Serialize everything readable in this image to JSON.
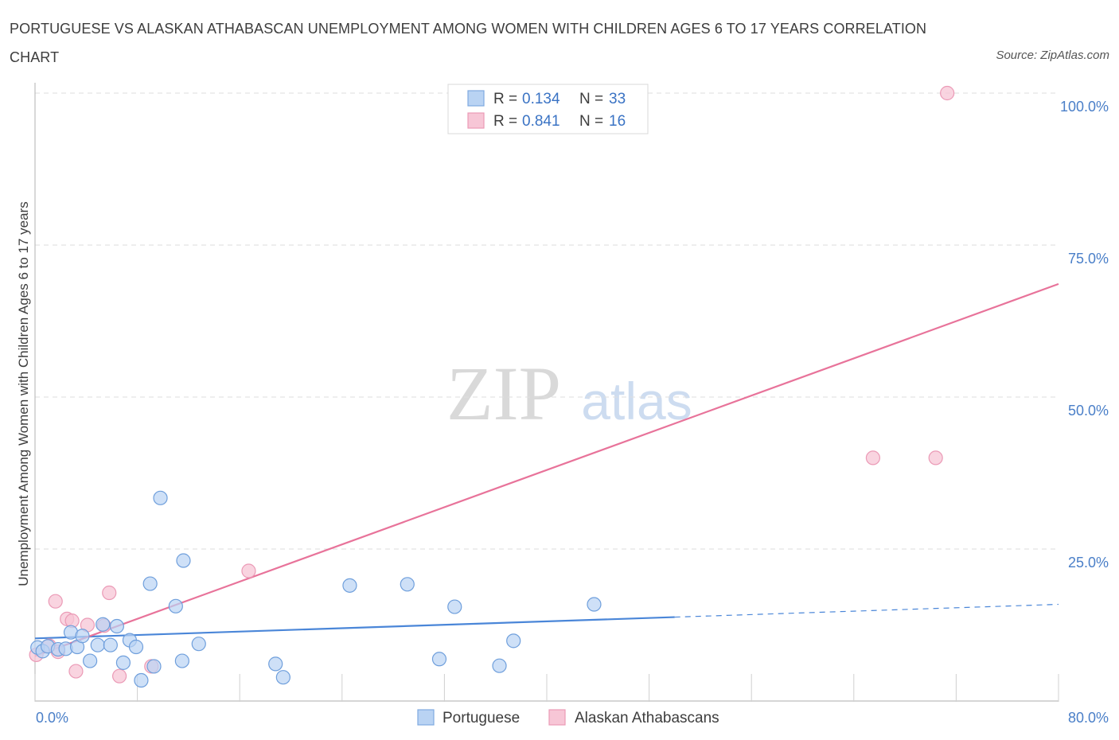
{
  "header": {
    "title": "PORTUGUESE VS ALASKAN ATHABASCAN UNEMPLOYMENT AMONG WOMEN WITH CHILDREN AGES 6 TO 17 YEARS CORRELATION CHART",
    "source": "Source: ZipAtlas.com"
  },
  "watermark": {
    "zip": "ZIP",
    "atlas": "atlas"
  },
  "legend": {
    "rows": [
      {
        "r_label": "R = ",
        "r_value": "0.134",
        "n_label": "N = ",
        "n_value": "33"
      },
      {
        "r_label": "R = ",
        "r_value": "0.841",
        "n_label": "N = ",
        "n_value": "16"
      }
    ]
  },
  "chart_data": {
    "type": "scatter",
    "title": "PORTUGUESE VS ALASKAN ATHABASCAN UNEMPLOYMENT AMONG WOMEN WITH CHILDREN AGES 6 TO 17 YEARS CORRELATION CHART",
    "xlabel": "",
    "ylabel": "Unemployment Among Women with Children Ages 6 to 17 years",
    "xlim": [
      0,
      80
    ],
    "ylim": [
      0,
      100
    ],
    "x_tick_labels": [
      "0.0%",
      "80.0%"
    ],
    "y_ticks": [
      25,
      50,
      75,
      100
    ],
    "y_tick_labels": [
      "25.0%",
      "50.0%",
      "75.0%",
      "100.0%"
    ],
    "grid": true,
    "colors": {
      "portuguese": "#4a86d8",
      "alaskan": "#e8739a",
      "portuguese_fill": "#b9d3f3",
      "alaskan_fill": "#f7c6d6"
    },
    "series": [
      {
        "name": "Portuguese",
        "r": 0.134,
        "n": 33,
        "points": [
          [
            0.2,
            8.8
          ],
          [
            0.6,
            8.2
          ],
          [
            1.0,
            9.0
          ],
          [
            1.8,
            8.5
          ],
          [
            2.4,
            8.6
          ],
          [
            2.8,
            11.3
          ],
          [
            3.3,
            8.9
          ],
          [
            3.7,
            10.7
          ],
          [
            4.3,
            6.6
          ],
          [
            4.9,
            9.2
          ],
          [
            5.3,
            12.6
          ],
          [
            5.9,
            9.2
          ],
          [
            6.4,
            12.3
          ],
          [
            6.9,
            6.3
          ],
          [
            7.4,
            10.0
          ],
          [
            7.9,
            8.9
          ],
          [
            8.3,
            3.4
          ],
          [
            9.0,
            19.3
          ],
          [
            9.3,
            5.7
          ],
          [
            9.8,
            33.4
          ],
          [
            11.0,
            15.6
          ],
          [
            11.5,
            6.6
          ],
          [
            11.6,
            23.1
          ],
          [
            12.8,
            9.4
          ],
          [
            18.8,
            6.1
          ],
          [
            19.4,
            3.9
          ],
          [
            24.6,
            19.0
          ],
          [
            29.1,
            19.2
          ],
          [
            31.6,
            6.9
          ],
          [
            32.8,
            15.5
          ],
          [
            36.3,
            5.8
          ],
          [
            37.4,
            9.9
          ],
          [
            43.7,
            15.9
          ]
        ],
        "trend": {
          "x": [
            0,
            50
          ],
          "y": [
            10.3,
            13.8
          ],
          "dashed_to": [
            80,
            15.9
          ]
        }
      },
      {
        "name": "Alaskan Athabascans",
        "r": 0.841,
        "n": 16,
        "points": [
          [
            0.1,
            7.6
          ],
          [
            1.1,
            9.1
          ],
          [
            1.6,
            16.4
          ],
          [
            1.8,
            8.1
          ],
          [
            2.5,
            13.5
          ],
          [
            2.9,
            13.2
          ],
          [
            3.2,
            4.9
          ],
          [
            4.1,
            12.5
          ],
          [
            5.4,
            12.4
          ],
          [
            5.8,
            17.8
          ],
          [
            6.6,
            4.1
          ],
          [
            9.1,
            5.7
          ],
          [
            16.7,
            21.4
          ],
          [
            65.5,
            40.0
          ],
          [
            70.4,
            40.0
          ],
          [
            71.3,
            100.0
          ]
        ],
        "trend": {
          "x": [
            0,
            80
          ],
          "y": [
            7.4,
            68.6
          ]
        }
      }
    ]
  },
  "bottom_legend": {
    "items": [
      "Portuguese",
      "Alaskan Athabascans"
    ]
  }
}
